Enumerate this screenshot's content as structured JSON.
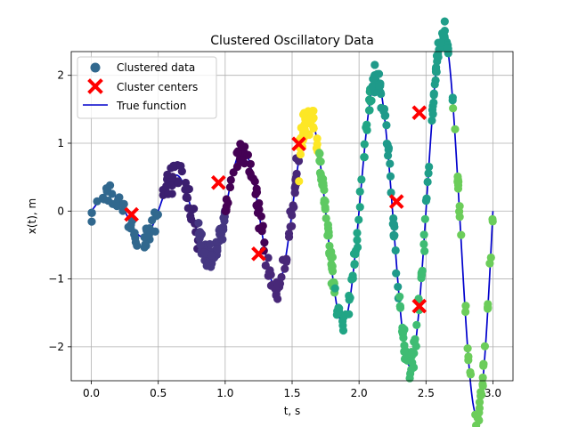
{
  "chart_data": {
    "type": "scatter",
    "title": "Clustered Oscillatory Data",
    "xlabel": "t, s",
    "ylabel": "x(t), m",
    "xlim": [
      -0.15,
      3.15
    ],
    "ylim": [
      -2.5,
      2.35
    ],
    "xticks": [
      0.0,
      0.5,
      1.0,
      1.5,
      2.0,
      2.5,
      3.0
    ],
    "xtick_labels": [
      "0.0",
      "0.5",
      "1.0",
      "1.5",
      "2.0",
      "2.5",
      "3.0"
    ],
    "yticks": [
      -2,
      -1,
      0,
      1,
      2
    ],
    "ytick_labels": [
      "−2",
      "−1",
      "0",
      "1",
      "2"
    ],
    "grid": true,
    "legend_position": "top-left",
    "legend": [
      {
        "label": "Clustered data",
        "marker": "circle",
        "color": "#31688e"
      },
      {
        "label": "Cluster centers",
        "marker": "x",
        "color": "#ff0000"
      },
      {
        "label": "True function",
        "marker": "line",
        "color": "#0000cc"
      }
    ],
    "true_function": {
      "name": "True function",
      "color": "#0000cc",
      "formula": "0.2*(1+t)^2*sin(4*pi*t)"
    },
    "clusters": [
      {
        "color": "#31688e",
        "t_range": [
          0.0,
          0.5
        ]
      },
      {
        "color": "#3b1f6f",
        "t_range": [
          0.5,
          0.8
        ]
      },
      {
        "color": "#453781",
        "t_range": [
          0.8,
          1.0
        ]
      },
      {
        "color": "#440154",
        "t_range": [
          1.0,
          1.3
        ]
      },
      {
        "color": "#482878",
        "t_range": [
          1.3,
          1.55
        ]
      },
      {
        "color": "#fde725",
        "t_range": [
          1.55,
          1.7
        ]
      },
      {
        "color": "#5ec962",
        "t_range": [
          1.7,
          1.82
        ]
      },
      {
        "color": "#21a585",
        "t_range": [
          1.82,
          2.1
        ]
      },
      {
        "color": "#1f9a8a",
        "t_range": [
          2.1,
          2.3
        ]
      },
      {
        "color": "#3fbc73",
        "t_range": [
          2.3,
          2.5
        ]
      },
      {
        "color": "#1f9e89",
        "t_range": [
          2.5,
          2.7
        ]
      },
      {
        "color": "#6ccd5a",
        "t_range": [
          2.7,
          3.0
        ]
      }
    ],
    "noise_sd": 0.1,
    "points_per_cluster": 45,
    "cluster_centers": [
      {
        "x": 0.3,
        "y": -0.05
      },
      {
        "x": 0.95,
        "y": 0.42
      },
      {
        "x": 1.25,
        "y": -0.63
      },
      {
        "x": 1.55,
        "y": 0.99
      },
      {
        "x": 2.28,
        "y": 0.14
      },
      {
        "x": 2.45,
        "y": 1.45
      },
      {
        "x": 2.45,
        "y": -1.4
      }
    ]
  }
}
